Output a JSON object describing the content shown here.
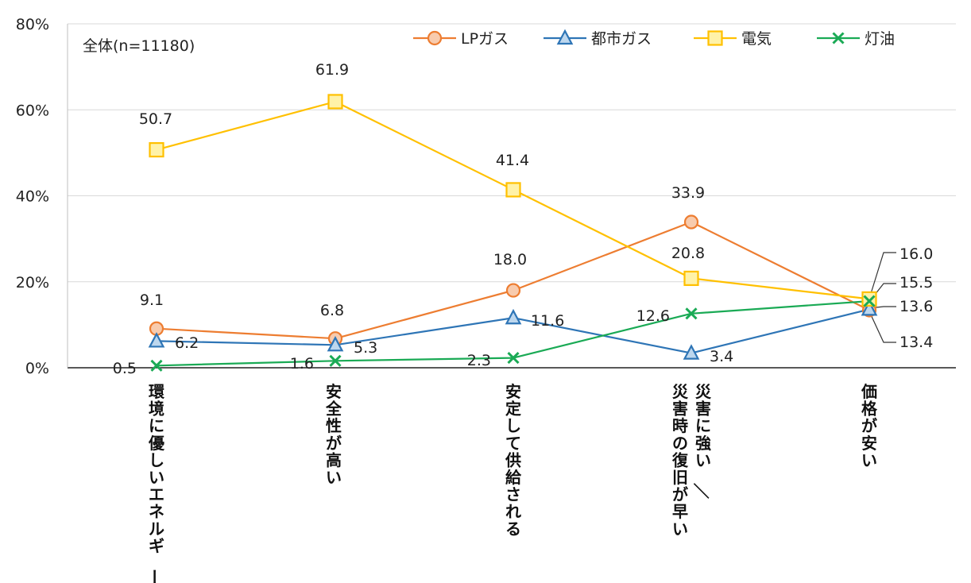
{
  "chart_data": {
    "type": "line",
    "subtitle": "全体(n=11180)",
    "categories": [
      "環境に優しいエネルギー",
      "安全性が高い",
      "安定して供給される",
      "災害に強い／災害時の復旧が早い",
      "価格が安い"
    ],
    "y_ticks": [
      "0%",
      "20%",
      "40%",
      "60%",
      "80%"
    ],
    "ylim": [
      0,
      80
    ],
    "grid": true,
    "legend_position": "top-right",
    "series": [
      {
        "name": "LPガス",
        "marker": "circle",
        "color": "#ED7D31",
        "fill": "#F8CBAD",
        "values": [
          9.1,
          6.8,
          18.0,
          33.9,
          13.4
        ],
        "labels": [
          "9.1",
          "6.8",
          "18.0",
          "33.9",
          "13.4"
        ]
      },
      {
        "name": "都市ガス",
        "marker": "triangle",
        "color": "#2E75B6",
        "fill": "#BDD7EE",
        "values": [
          6.2,
          5.3,
          11.6,
          3.4,
          13.6
        ],
        "labels": [
          "6.2",
          "5.3",
          "11.6",
          "3.4",
          "13.6"
        ]
      },
      {
        "name": "電気",
        "marker": "square",
        "color": "#FFC000",
        "fill": "#FFF2A8",
        "values": [
          50.7,
          61.9,
          41.4,
          20.8,
          16.0
        ],
        "labels": [
          "50.7",
          "61.9",
          "41.4",
          "20.8",
          "16.0"
        ]
      },
      {
        "name": "灯油",
        "marker": "x",
        "color": "#1AAA55",
        "fill": "#1AAA55",
        "values": [
          0.5,
          1.6,
          2.3,
          12.6,
          15.5
        ],
        "labels": [
          "0.5",
          "1.6",
          "2.3",
          "12.6",
          "15.5"
        ]
      }
    ]
  }
}
